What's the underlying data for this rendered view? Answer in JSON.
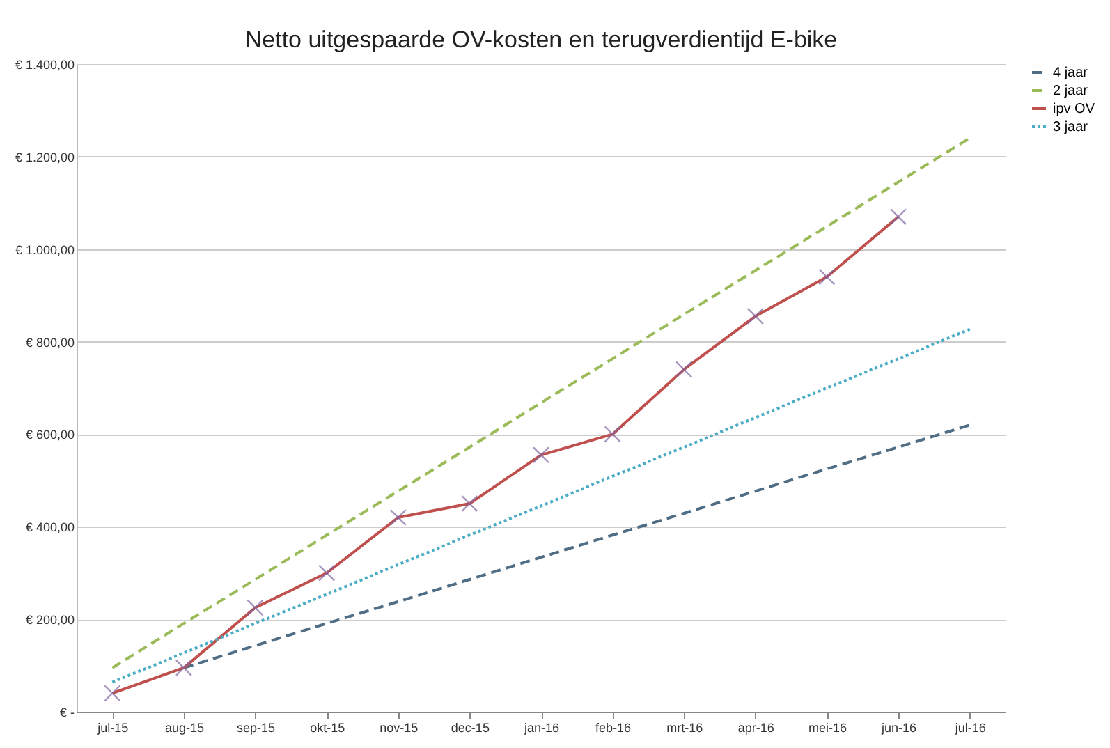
{
  "chart_data": {
    "type": "line",
    "title": "Netto uitgespaarde OV-kosten en terugverdientijd  E-bike",
    "categories": [
      "jul-15",
      "aug-15",
      "sep-15",
      "okt-15",
      "nov-15",
      "dec-15",
      "jan-16",
      "feb-16",
      "mrt-16",
      "apr-16",
      "mei-16",
      "jun-16",
      "jul-16"
    ],
    "series": [
      {
        "name": "4 jaar",
        "color": "#4f6d85",
        "line_style": "dashed",
        "marker": "none",
        "values": [
          null,
          95,
          143,
          191,
          238,
          286,
          334,
          382,
          429,
          477,
          525,
          572,
          620
        ]
      },
      {
        "name": "2 jaar",
        "color": "#9bbb59",
        "line_style": "dashed",
        "marker": "none",
        "values": [
          95,
          191,
          286,
          382,
          477,
          572,
          668,
          763,
          859,
          954,
          1049,
          1145,
          1240
        ]
      },
      {
        "name": "ipv OV",
        "color": "#c0504d",
        "line_style": "solid",
        "marker": "cross",
        "values": [
          40,
          95,
          225,
          300,
          420,
          450,
          555,
          600,
          740,
          855,
          940,
          1070,
          null
        ]
      },
      {
        "name": "3 jaar",
        "color": "#4bacc6",
        "line_style": "dotted",
        "marker": "none",
        "values": [
          64,
          127,
          191,
          254,
          318,
          382,
          445,
          509,
          572,
          636,
          700,
          763,
          827
        ]
      }
    ],
    "ylim": [
      0,
      1400
    ],
    "yticks": [
      {
        "value": 0,
        "label": "€ -"
      },
      {
        "value": 200,
        "label": "€ 200,00"
      },
      {
        "value": 400,
        "label": "€ 400,00"
      },
      {
        "value": 600,
        "label": "€ 600,00"
      },
      {
        "value": 800,
        "label": "€ 800,00"
      },
      {
        "value": 1000,
        "label": "€ 1.000,00"
      },
      {
        "value": 1200,
        "label": "€ 1.200,00"
      },
      {
        "value": 1400,
        "label": "€ 1.400,00"
      }
    ],
    "grid": "y",
    "legend": "right"
  }
}
